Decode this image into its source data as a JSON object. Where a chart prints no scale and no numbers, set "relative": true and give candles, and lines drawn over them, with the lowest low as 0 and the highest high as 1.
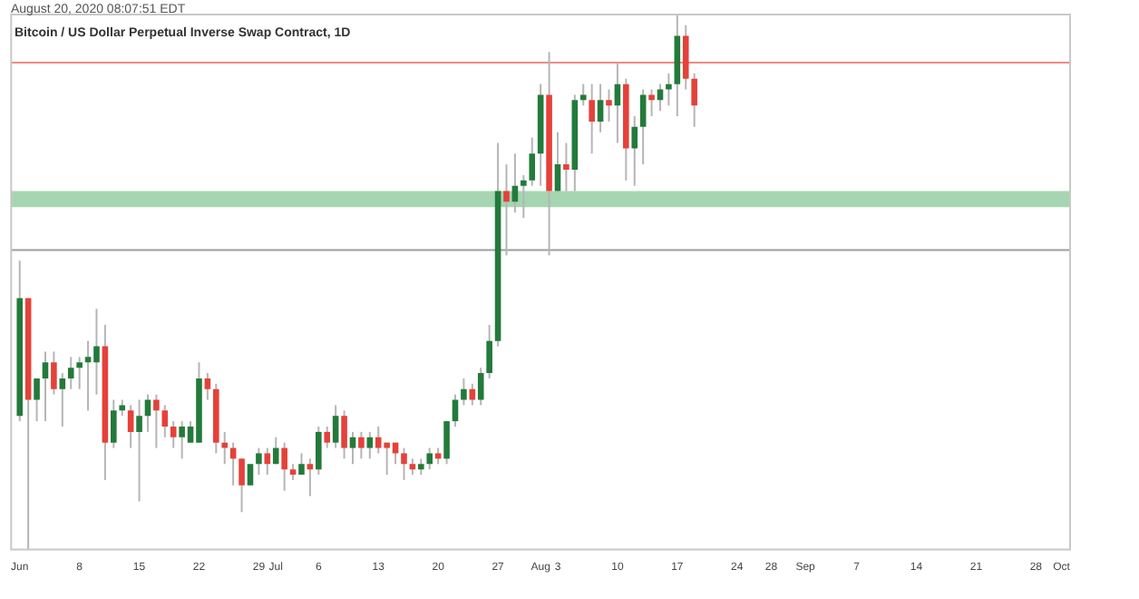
{
  "chart_data": {
    "type": "candlestick",
    "title": "Bitcoin / US Dollar Perpetual Inverse Swap Contract, 1D",
    "subtitle": "August 20, 2020 08:07:51 EDT",
    "relative": true,
    "x": [
      "2020-06-01",
      "2020-06-02",
      "2020-06-03",
      "2020-06-04",
      "2020-06-05",
      "2020-06-06",
      "2020-06-07",
      "2020-06-08",
      "2020-06-09",
      "2020-06-10",
      "2020-06-11",
      "2020-06-12",
      "2020-06-13",
      "2020-06-14",
      "2020-06-15",
      "2020-06-16",
      "2020-06-17",
      "2020-06-18",
      "2020-06-19",
      "2020-06-20",
      "2020-06-21",
      "2020-06-22",
      "2020-06-23",
      "2020-06-24",
      "2020-06-25",
      "2020-06-26",
      "2020-06-27",
      "2020-06-28",
      "2020-06-29",
      "2020-06-30",
      "2020-07-01",
      "2020-07-02",
      "2020-07-03",
      "2020-07-04",
      "2020-07-05",
      "2020-07-06",
      "2020-07-07",
      "2020-07-08",
      "2020-07-09",
      "2020-07-10",
      "2020-07-11",
      "2020-07-12",
      "2020-07-13",
      "2020-07-14",
      "2020-07-15",
      "2020-07-16",
      "2020-07-17",
      "2020-07-18",
      "2020-07-19",
      "2020-07-20",
      "2020-07-21",
      "2020-07-22",
      "2020-07-23",
      "2020-07-24",
      "2020-07-25",
      "2020-07-26",
      "2020-07-27",
      "2020-07-28",
      "2020-07-29",
      "2020-07-30",
      "2020-07-31",
      "2020-08-01",
      "2020-08-02",
      "2020-08-03",
      "2020-08-04",
      "2020-08-05",
      "2020-08-06",
      "2020-08-07",
      "2020-08-08",
      "2020-08-09",
      "2020-08-10",
      "2020-08-11",
      "2020-08-12",
      "2020-08-13",
      "2020-08-14",
      "2020-08-15",
      "2020-08-16",
      "2020-08-17",
      "2020-08-18",
      "2020-08-19"
    ],
    "ohlc": [
      [
        0.25,
        0.54,
        0.24,
        0.47
      ],
      [
        0.47,
        0.47,
        0,
        0.28
      ],
      [
        0.28,
        0.32,
        0.24,
        0.32
      ],
      [
        0.32,
        0.37,
        0.24,
        0.35
      ],
      [
        0.35,
        0.37,
        0.29,
        0.3
      ],
      [
        0.3,
        0.33,
        0.23,
        0.32
      ],
      [
        0.32,
        0.36,
        0.3,
        0.34
      ],
      [
        0.34,
        0.36,
        0.3,
        0.35
      ],
      [
        0.35,
        0.39,
        0.26,
        0.36
      ],
      [
        0.35,
        0.45,
        0.29,
        0.38
      ],
      [
        0.38,
        0.42,
        0.13,
        0.2
      ],
      [
        0.2,
        0.28,
        0.19,
        0.26
      ],
      [
        0.26,
        0.28,
        0.25,
        0.27
      ],
      [
        0.26,
        0.27,
        0.19,
        0.22
      ],
      [
        0.22,
        0.28,
        0.09,
        0.25
      ],
      [
        0.25,
        0.29,
        0.22,
        0.28
      ],
      [
        0.28,
        0.29,
        0.19,
        0.26
      ],
      [
        0.26,
        0.27,
        0.21,
        0.23
      ],
      [
        0.23,
        0.24,
        0.19,
        0.21
      ],
      [
        0.21,
        0.24,
        0.17,
        0.23
      ],
      [
        0.2,
        0.24,
        0.2,
        0.23
      ],
      [
        0.2,
        0.35,
        0.2,
        0.32
      ],
      [
        0.32,
        0.33,
        0.28,
        0.3
      ],
      [
        0.3,
        0.31,
        0.18,
        0.2
      ],
      [
        0.2,
        0.22,
        0.16,
        0.19
      ],
      [
        0.19,
        0.2,
        0.12,
        0.17
      ],
      [
        0.17,
        0.17,
        0.07,
        0.12
      ],
      [
        0.12,
        0.16,
        0.12,
        0.16
      ],
      [
        0.16,
        0.19,
        0.14,
        0.18
      ],
      [
        0.18,
        0.19,
        0.14,
        0.16
      ],
      [
        0.16,
        0.21,
        0.16,
        0.19
      ],
      [
        0.19,
        0.2,
        0.11,
        0.15
      ],
      [
        0.15,
        0.16,
        0.13,
        0.14
      ],
      [
        0.14,
        0.18,
        0.14,
        0.16
      ],
      [
        0.16,
        0.17,
        0.1,
        0.15
      ],
      [
        0.15,
        0.23,
        0.14,
        0.22
      ],
      [
        0.22,
        0.23,
        0.19,
        0.2
      ],
      [
        0.2,
        0.27,
        0.19,
        0.25
      ],
      [
        0.25,
        0.26,
        0.17,
        0.19
      ],
      [
        0.19,
        0.22,
        0.16,
        0.21
      ],
      [
        0.21,
        0.22,
        0.17,
        0.19
      ],
      [
        0.19,
        0.22,
        0.17,
        0.21
      ],
      [
        0.21,
        0.23,
        0.18,
        0.19
      ],
      [
        0.2,
        0.2,
        0.14,
        0.19
      ],
      [
        0.2,
        0.2,
        0.16,
        0.18
      ],
      [
        0.18,
        0.19,
        0.13,
        0.16
      ],
      [
        0.16,
        0.17,
        0.14,
        0.15
      ],
      [
        0.15,
        0.17,
        0.14,
        0.16
      ],
      [
        0.16,
        0.19,
        0.15,
        0.18
      ],
      [
        0.18,
        0.19,
        0.16,
        0.17
      ],
      [
        0.17,
        0.24,
        0.16,
        0.24
      ],
      [
        0.24,
        0.29,
        0.23,
        0.28
      ],
      [
        0.28,
        0.32,
        0.27,
        0.3
      ],
      [
        0.3,
        0.31,
        0.27,
        0.28
      ],
      [
        0.28,
        0.34,
        0.27,
        0.33
      ],
      [
        0.33,
        0.42,
        0.32,
        0.39
      ],
      [
        0.39,
        0.76,
        0.38,
        0.67
      ],
      [
        0.67,
        0.72,
        0.55,
        0.65
      ],
      [
        0.65,
        0.74,
        0.63,
        0.68
      ],
      [
        0.68,
        0.7,
        0.62,
        0.69
      ],
      [
        0.69,
        0.77,
        0.68,
        0.74
      ],
      [
        0.74,
        0.87,
        0.68,
        0.85
      ],
      [
        0.85,
        0.93,
        0.55,
        0.67
      ],
      [
        0.67,
        0.78,
        0.67,
        0.72
      ],
      [
        0.72,
        0.76,
        0.67,
        0.71
      ],
      [
        0.71,
        0.85,
        0.67,
        0.84
      ],
      [
        0.84,
        0.87,
        0.83,
        0.85
      ],
      [
        0.84,
        0.87,
        0.74,
        0.8
      ],
      [
        0.8,
        0.87,
        0.78,
        0.84
      ],
      [
        0.84,
        0.86,
        0.8,
        0.83
      ],
      [
        0.83,
        0.91,
        0.76,
        0.87
      ],
      [
        0.87,
        0.88,
        0.69,
        0.75
      ],
      [
        0.75,
        0.81,
        0.68,
        0.79
      ],
      [
        0.79,
        0.86,
        0.72,
        0.85
      ],
      [
        0.85,
        0.86,
        0.81,
        0.84
      ],
      [
        0.84,
        0.87,
        0.82,
        0.86
      ],
      [
        0.86,
        0.89,
        0.83,
        0.87
      ],
      [
        0.87,
        1,
        0.81,
        0.96
      ],
      [
        0.96,
        0.98,
        0.86,
        0.88
      ],
      [
        0.88,
        0.89,
        0.79,
        0.83
      ]
    ],
    "colors": [
      "#237a3b",
      "#e5413a",
      "#237a3b",
      "#237a3b",
      "#e5413a",
      "#237a3b",
      "#237a3b",
      "#237a3b",
      "#237a3b",
      "#237a3b",
      "#e5413a",
      "#237a3b",
      "#237a3b",
      "#e5413a",
      "#237a3b",
      "#237a3b",
      "#e5413a",
      "#e5413a",
      "#e5413a",
      "#237a3b",
      "#237a3b",
      "#237a3b",
      "#e5413a",
      "#e5413a",
      "#e5413a",
      "#e5413a",
      "#e5413a",
      "#237a3b",
      "#237a3b",
      "#e5413a",
      "#237a3b",
      "#e5413a",
      "#e5413a",
      "#237a3b",
      "#e5413a",
      "#237a3b",
      "#e5413a",
      "#237a3b",
      "#e5413a",
      "#237a3b",
      "#e5413a",
      "#237a3b",
      "#e5413a",
      "#e5413a",
      "#e5413a",
      "#e5413a",
      "#e5413a",
      "#237a3b",
      "#237a3b",
      "#e5413a",
      "#237a3b",
      "#237a3b",
      "#237a3b",
      "#e5413a",
      "#237a3b",
      "#237a3b",
      "#237a3b",
      "#e5413a",
      "#237a3b",
      "#237a3b",
      "#237a3b",
      "#237a3b",
      "#e5413a",
      "#237a3b",
      "#e5413a",
      "#237a3b",
      "#237a3b",
      "#e5413a",
      "#237a3b",
      "#e5413a",
      "#237a3b",
      "#e5413a",
      "#237a3b",
      "#237a3b",
      "#e5413a",
      "#237a3b",
      "#237a3b",
      "#237a3b",
      "#e5413a",
      "#e5413a"
    ],
    "xlim": [
      "2020-05-31",
      "2020-10-02"
    ],
    "xticks": [
      {
        "value": "2020-06-01",
        "label": "Jun"
      },
      {
        "value": "2020-06-08",
        "label": "8"
      },
      {
        "value": "2020-06-15",
        "label": "15"
      },
      {
        "value": "2020-06-22",
        "label": "22"
      },
      {
        "value": "2020-06-29",
        "label": "29"
      },
      {
        "value": "2020-07-01",
        "label": "Jul"
      },
      {
        "value": "2020-07-06",
        "label": "6"
      },
      {
        "value": "2020-07-13",
        "label": "13"
      },
      {
        "value": "2020-07-20",
        "label": "20"
      },
      {
        "value": "2020-07-27",
        "label": "27"
      },
      {
        "value": "2020-08-01",
        "label": "Aug"
      },
      {
        "value": "2020-08-03",
        "label": "3"
      },
      {
        "value": "2020-08-10",
        "label": "10"
      },
      {
        "value": "2020-08-17",
        "label": "17"
      },
      {
        "value": "2020-08-24",
        "label": "24"
      },
      {
        "value": "2020-08-28",
        "label": "28"
      },
      {
        "value": "2020-09-01",
        "label": "Sep"
      },
      {
        "value": "2020-09-07",
        "label": "7"
      },
      {
        "value": "2020-09-14",
        "label": "14"
      },
      {
        "value": "2020-09-21",
        "label": "21"
      },
      {
        "value": "2020-09-28",
        "label": "28"
      },
      {
        "value": "2020-10-01",
        "label": "Oct"
      }
    ],
    "ref_lines": [
      {
        "axis": "y",
        "value": 0.56,
        "color": "#9e9e9e",
        "line_style": "solid"
      },
      {
        "axis": "y",
        "value": 0.91,
        "color": "#ef8a86",
        "line_style": "solid"
      }
    ],
    "bands": [
      {
        "axis": "y",
        "from": 0.64,
        "to": 0.67,
        "color": "#8fcc9d"
      }
    ],
    "grid": false,
    "legend": false
  }
}
